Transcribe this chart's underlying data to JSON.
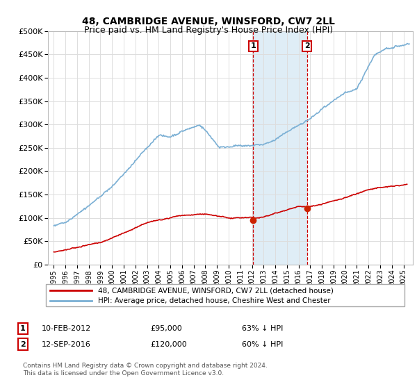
{
  "title": "48, CAMBRIDGE AVENUE, WINSFORD, CW7 2LL",
  "subtitle": "Price paid vs. HM Land Registry's House Price Index (HPI)",
  "hpi_label": "HPI: Average price, detached house, Cheshire West and Chester",
  "price_label": "48, CAMBRIDGE AVENUE, WINSFORD, CW7 2LL (detached house)",
  "hpi_color": "#7aafd4",
  "price_color": "#cc0000",
  "marker1_date_x": 2012.11,
  "marker1_price": 95000,
  "marker1_text": "10-FEB-2012",
  "marker1_price_str": "£95,000",
  "marker1_hpi_str": "63% ↓ HPI",
  "marker2_date_x": 2016.71,
  "marker2_price": 120000,
  "marker2_text": "12-SEP-2016",
  "marker2_price_str": "£120,000",
  "marker2_hpi_str": "60% ↓ HPI",
  "shade_color": "#daeaf5",
  "dashed_line_color": "#cc0000",
  "footer1": "Contains HM Land Registry data © Crown copyright and database right 2024.",
  "footer2": "This data is licensed under the Open Government Licence v3.0.",
  "ylim": [
    0,
    500000
  ],
  "yticks": [
    0,
    50000,
    100000,
    150000,
    200000,
    250000,
    300000,
    350000,
    400000,
    450000,
    500000
  ],
  "xlim_start": 1994.5,
  "xlim_end": 2025.8
}
